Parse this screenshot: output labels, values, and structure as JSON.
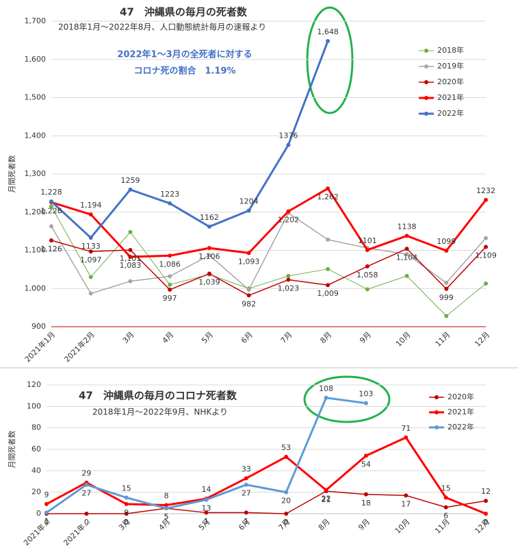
{
  "chart_data": [
    {
      "type": "line",
      "title": "47　沖縄県の毎月の死者数",
      "subtitle": "2018年1月～2022年8月、人口動態統計毎月の速報より",
      "annotations": [
        "2022年1～3月の全死者に対する",
        "コロナ死の割合　1.19%"
      ],
      "y_label": "月間死者数",
      "categories": [
        "2021年1月",
        "2021年2月",
        "3月",
        "4月",
        "5月",
        "6月",
        "7月",
        "8月",
        "9月",
        "10月",
        "11月",
        "12月"
      ],
      "ylim": [
        900,
        1700
      ],
      "yticks": [
        900,
        {
          "value": 1000,
          "label": "1,000"
        },
        {
          "value": 1100,
          "label": "1,100"
        },
        {
          "value": 1200,
          "label": "1,200"
        },
        {
          "value": 1300,
          "label": "1,300"
        },
        {
          "value": 1400,
          "label": "1,400"
        },
        {
          "value": 1500,
          "label": "1,500"
        },
        {
          "value": 1600,
          "label": "1,600"
        },
        {
          "value": 1700,
          "label": "1,700"
        }
      ],
      "grid": true,
      "legend": "upper right",
      "series": [
        {
          "name": "2018年",
          "color": "#70ad47",
          "line_width": 1,
          "data_labels": false,
          "values": [
            1215,
            1030,
            1148,
            1010,
            1037,
            1000,
            1033,
            1051,
            998,
            1033,
            928,
            1013
          ]
        },
        {
          "name": "2019年",
          "color": "#a5a5a5",
          "line_width": 1.5,
          "data_labels": false,
          "values": [
            1163,
            987,
            1019,
            1032,
            1087,
            997,
            1198,
            1128,
            1106,
            1090,
            1015,
            1132
          ]
        },
        {
          "name": "2020年",
          "color": "#c00000",
          "line_width": 1.5,
          "data_labels": true,
          "values": [
            1126,
            1097,
            1101,
            997,
            1039,
            982,
            1023,
            1009,
            1058,
            1104,
            999,
            1109
          ],
          "value_labels": [
            "1,126",
            "1,097",
            "1,101",
            "997",
            "1,039",
            "982",
            "1,023",
            "1,009",
            "1,058",
            "1,104",
            "999",
            "1,109"
          ]
        },
        {
          "name": "2021年",
          "color": "#ff0000",
          "line_width": 3,
          "data_labels": true,
          "values": [
            1226,
            1194,
            1083,
            1086,
            1106,
            1093,
            1202,
            1262,
            1101,
            1138,
            1099,
            1232
          ],
          "value_labels": [
            "1,226",
            "1,194",
            "1,083",
            "1,086",
            "1,106",
            "1,093",
            "1,202",
            "1,262",
            "1101",
            "1138",
            "1099",
            "1232"
          ]
        },
        {
          "name": "2022年",
          "color": "#4472c4",
          "line_width": 3,
          "data_labels": true,
          "values": [
            1228,
            1133,
            1259,
            1223,
            1162,
            1204,
            1376,
            1648,
            null,
            null,
            null,
            null
          ],
          "value_labels": [
            "1,228",
            "1133",
            "1259",
            "1223",
            "1162",
            "1204",
            "1376",
            "1,648",
            null,
            null,
            null,
            null
          ]
        }
      ]
    },
    {
      "type": "line",
      "title": "47　沖縄県の毎月のコロナ死者数",
      "subtitle": "2018年1月～2022年9月、NHKより",
      "y_label": "月間死者数",
      "categories": [
        "2021年...",
        "2021年...",
        "3月",
        "4月",
        "5月",
        "6月",
        "7月",
        "8月",
        "9月",
        "10月",
        "11月",
        "12月"
      ],
      "ylim": [
        0,
        120
      ],
      "yticks": [
        0,
        20,
        40,
        60,
        80,
        100,
        120
      ],
      "grid": true,
      "legend": "upper right",
      "series": [
        {
          "name": "2020年",
          "color": "#c00000",
          "line_width": 1.5,
          "data_labels": true,
          "values": [
            0,
            0,
            0,
            5,
            1,
            1,
            0,
            21,
            18,
            17,
            6,
            12
          ]
        },
        {
          "name": "2021年",
          "color": "#ff0000",
          "line_width": 3,
          "data_labels": true,
          "values": [
            9,
            29,
            9,
            8,
            14,
            33,
            53,
            22,
            54,
            71,
            15,
            0
          ]
        },
        {
          "name": "2022年",
          "color": "#5b9bd5",
          "line_width": 3,
          "data_labels": true,
          "values": [
            1,
            27,
            15,
            5,
            13,
            27,
            20,
            108,
            103,
            null,
            null,
            null
          ]
        }
      ]
    }
  ]
}
